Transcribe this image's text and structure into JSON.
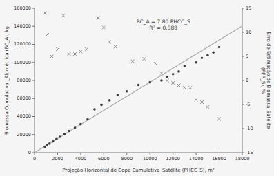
{
  "chart_data": {
    "type": "scatter",
    "xlabel": "Projeção Horizontal de Copa Cumulativa_Satélite (PHCC_S), m²",
    "ylabel": "Biomassa Cumulativa _Alométrica (BC_A), kg",
    "y2label": "Erro de Estimação de Biomassa_Satélite\n(EEB_S), %",
    "annotations": [
      "BC_A = 7.80 PHCC_S",
      "R² = 0.988"
    ],
    "xlim": [
      0,
      18000
    ],
    "ylim": [
      0,
      160000
    ],
    "y2lim": [
      -15,
      15
    ],
    "xticks": [
      0,
      2000,
      4000,
      6000,
      8000,
      10000,
      12000,
      14000,
      16000,
      18000
    ],
    "yticks": [
      0,
      20000,
      40000,
      60000,
      80000,
      100000,
      120000,
      140000,
      160000
    ],
    "y2ticks": [
      -15,
      -10,
      -5,
      0,
      5,
      10,
      15
    ],
    "grid": false,
    "series": [
      {
        "type": "line",
        "color": "#aaaaaa",
        "line_style": "solid",
        "x": [
          0,
          18000
        ],
        "values": [
          0,
          140400
        ]
      },
      {
        "type": "scatter",
        "color": "#404040",
        "marker": "o",
        "x": [
          900,
          1100,
          1300,
          1600,
          1900,
          2200,
          2600,
          3000,
          3500,
          4000,
          4600,
          5200,
          5800,
          6500,
          7200,
          8000,
          9000,
          10000,
          11000,
          11500,
          12000,
          12500,
          13000,
          14000,
          14500,
          15000,
          15500,
          16000
        ],
        "values": [
          6500,
          8500,
          10000,
          12500,
          15000,
          17500,
          20500,
          24000,
          27500,
          31500,
          37000,
          48000,
          53000,
          58000,
          64000,
          68000,
          75000,
          78000,
          80000,
          84000,
          87000,
          90000,
          96000,
          100000,
          105000,
          108000,
          111000,
          117000
        ]
      },
      {
        "type": "scatter",
        "color": "#909090",
        "marker": "x",
        "axis": "y2",
        "x": [
          900,
          1100,
          1500,
          2000,
          2500,
          3000,
          3500,
          4000,
          4500,
          5500,
          6000,
          6500,
          7000,
          8500,
          9500,
          10500,
          11000,
          11500,
          12000,
          12500,
          13000,
          13500,
          14000,
          14500,
          15000,
          16000
        ],
        "values": [
          14,
          9.5,
          5,
          6.5,
          13.5,
          5.5,
          5.5,
          6,
          6.5,
          13,
          11,
          8,
          7,
          4,
          4.5,
          3.5,
          1.5,
          0,
          -0.5,
          -1,
          -1.5,
          -1.5,
          -4,
          -4.5,
          -5.5,
          -8
        ]
      }
    ]
  }
}
